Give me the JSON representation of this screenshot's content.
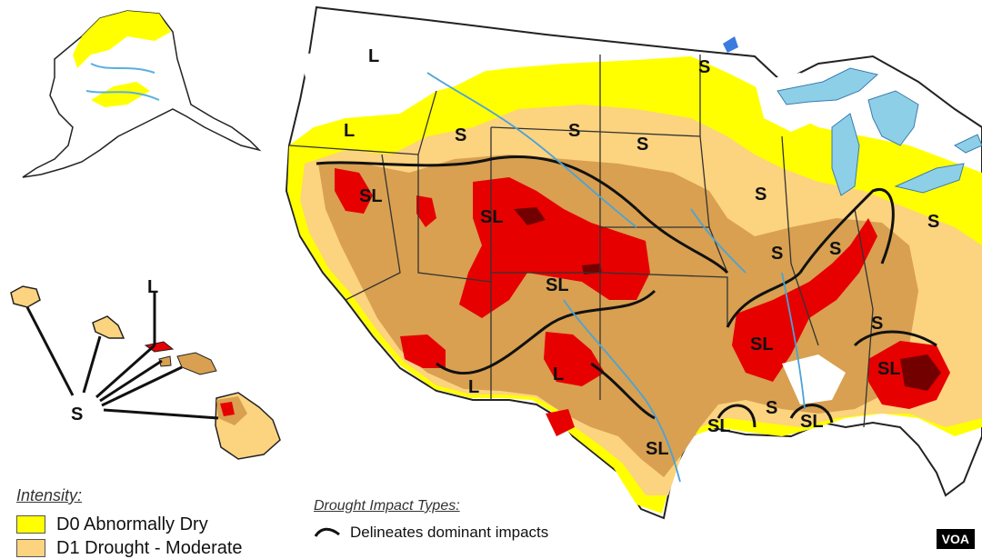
{
  "legend": {
    "title": "Intensity:",
    "items": [
      {
        "label": "D0 Abnormally Dry",
        "color": "#ffff00"
      },
      {
        "label": "D1 Drought - Moderate",
        "color": "#fcd37f"
      }
    ]
  },
  "impact": {
    "title": "Drought Impact Types:",
    "line_label": "Delineates dominant impacts"
  },
  "map_labels": {
    "s": "S",
    "l": "L",
    "sl": "SL"
  },
  "colors": {
    "d0": "#ffff00",
    "d1": "#fcd37f",
    "d2": "#d8a050",
    "d3": "#e60000",
    "d4": "#730000",
    "water": "#8ecfe8",
    "border": "#555555"
  },
  "badge": "VOA"
}
